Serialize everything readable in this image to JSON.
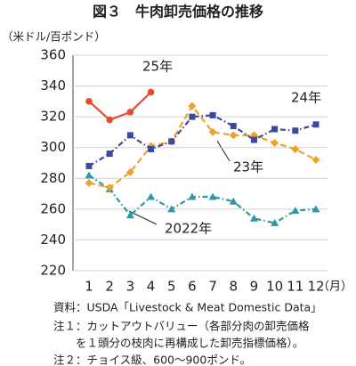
{
  "chart_data": {
    "type": "line",
    "title": "図３　牛肉卸売価格の推移",
    "y_label": "（米ドル/百ポンド）",
    "x_label": "（月）",
    "categories": [
      1,
      2,
      3,
      4,
      5,
      6,
      7,
      8,
      9,
      10,
      11,
      12
    ],
    "ylim": [
      220,
      360
    ],
    "yticks": [
      220,
      240,
      260,
      280,
      300,
      320,
      340,
      360
    ],
    "grid": true,
    "series": [
      {
        "name": "2022年",
        "color": "#2a9aa6",
        "marker": "triangle",
        "dash": "dashdot",
        "values": [
          282,
          273,
          256,
          268,
          260,
          268,
          268,
          265,
          254,
          251,
          259,
          260
        ]
      },
      {
        "name": "23年",
        "color": "#eea22a",
        "marker": "diamond",
        "dash": "dashed",
        "values": [
          277,
          274,
          284,
          301,
          304,
          327,
          310,
          308,
          308,
          303,
          299,
          292
        ]
      },
      {
        "name": "24年",
        "color": "#3b4a9c",
        "marker": "square",
        "dash": "dashdot",
        "values": [
          288,
          296,
          308,
          299,
          304,
          320,
          321,
          314,
          305,
          312,
          311,
          315
        ]
      },
      {
        "name": "25年",
        "color": "#e0502e",
        "marker": "circle",
        "dash": "solid",
        "values": [
          330,
          318,
          323,
          336,
          null,
          null,
          null,
          null,
          null,
          null,
          null,
          null
        ]
      }
    ],
    "notes": [
      "資料：USDA「Livestock & Meat Domestic Data」",
      "注１：カットアウトバリュー（各部分肉の卸売価格",
      "　　を１頭分の枝肉に再構成した卸売指標価格）。",
      "注２：チョイス級、600～900ポンド。"
    ]
  }
}
